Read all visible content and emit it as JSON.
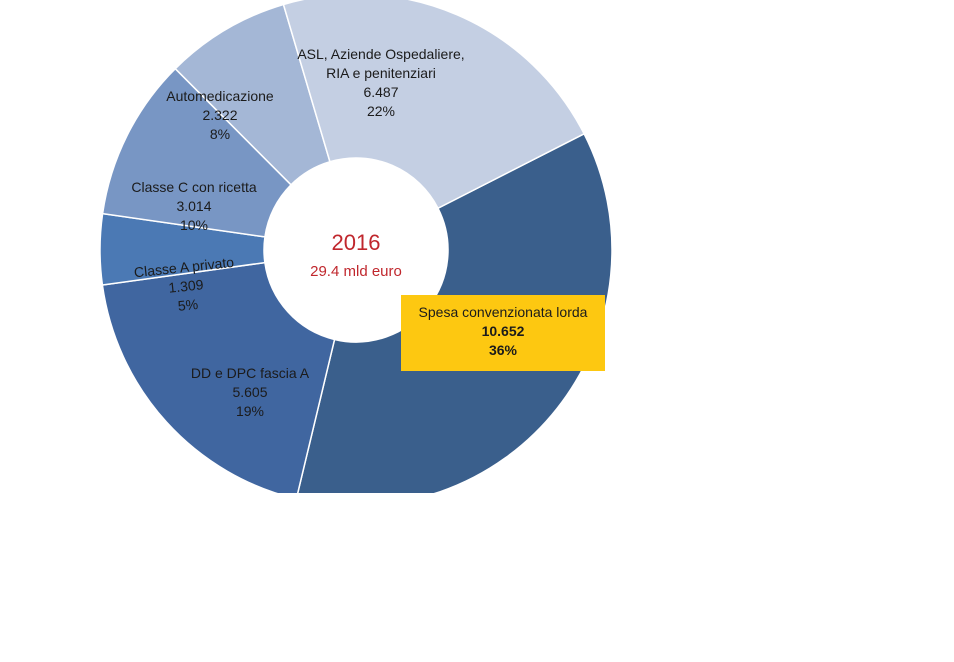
{
  "chart_data": {
    "type": "pie",
    "center_title": "2016",
    "center_subtitle": "29.4 mld euro",
    "slices": [
      {
        "name": "Spesa convenzionata lorda",
        "value_label": "10.652",
        "value": 10.652,
        "percent_label": "36%",
        "percent": 36,
        "color": "#3a5f8c",
        "highlighted": true
      },
      {
        "name": "DD e DPC fascia A",
        "value_label": "5.605",
        "value": 5.605,
        "percent_label": "19%",
        "percent": 19,
        "color": "#4066a0"
      },
      {
        "name": "Classe A privato",
        "value_label": "1.309",
        "value": 1.309,
        "percent_label": "5%",
        "percent": 5,
        "color": "#4b79b4"
      },
      {
        "name": "Classe C con ricetta",
        "value_label": "3.014",
        "value": 3.014,
        "percent_label": "10%",
        "percent": 10,
        "color": "#7896c4"
      },
      {
        "name": "Automedicazione",
        "value_label": "2.322",
        "value": 2.322,
        "percent_label": "8%",
        "percent": 8,
        "color": "#a4b7d6"
      },
      {
        "name": "ASL, Aziende Ospedaliere,",
        "name_line2": "RIA e penitenziari",
        "value_label": "6.487",
        "value": 6.487,
        "percent_label": "22%",
        "percent": 22,
        "color": "#c4cfe3"
      }
    ]
  },
  "colors": {
    "center_text": "#c0272d",
    "highlight_fill": "#fdc811",
    "background": "#ffffff"
  }
}
